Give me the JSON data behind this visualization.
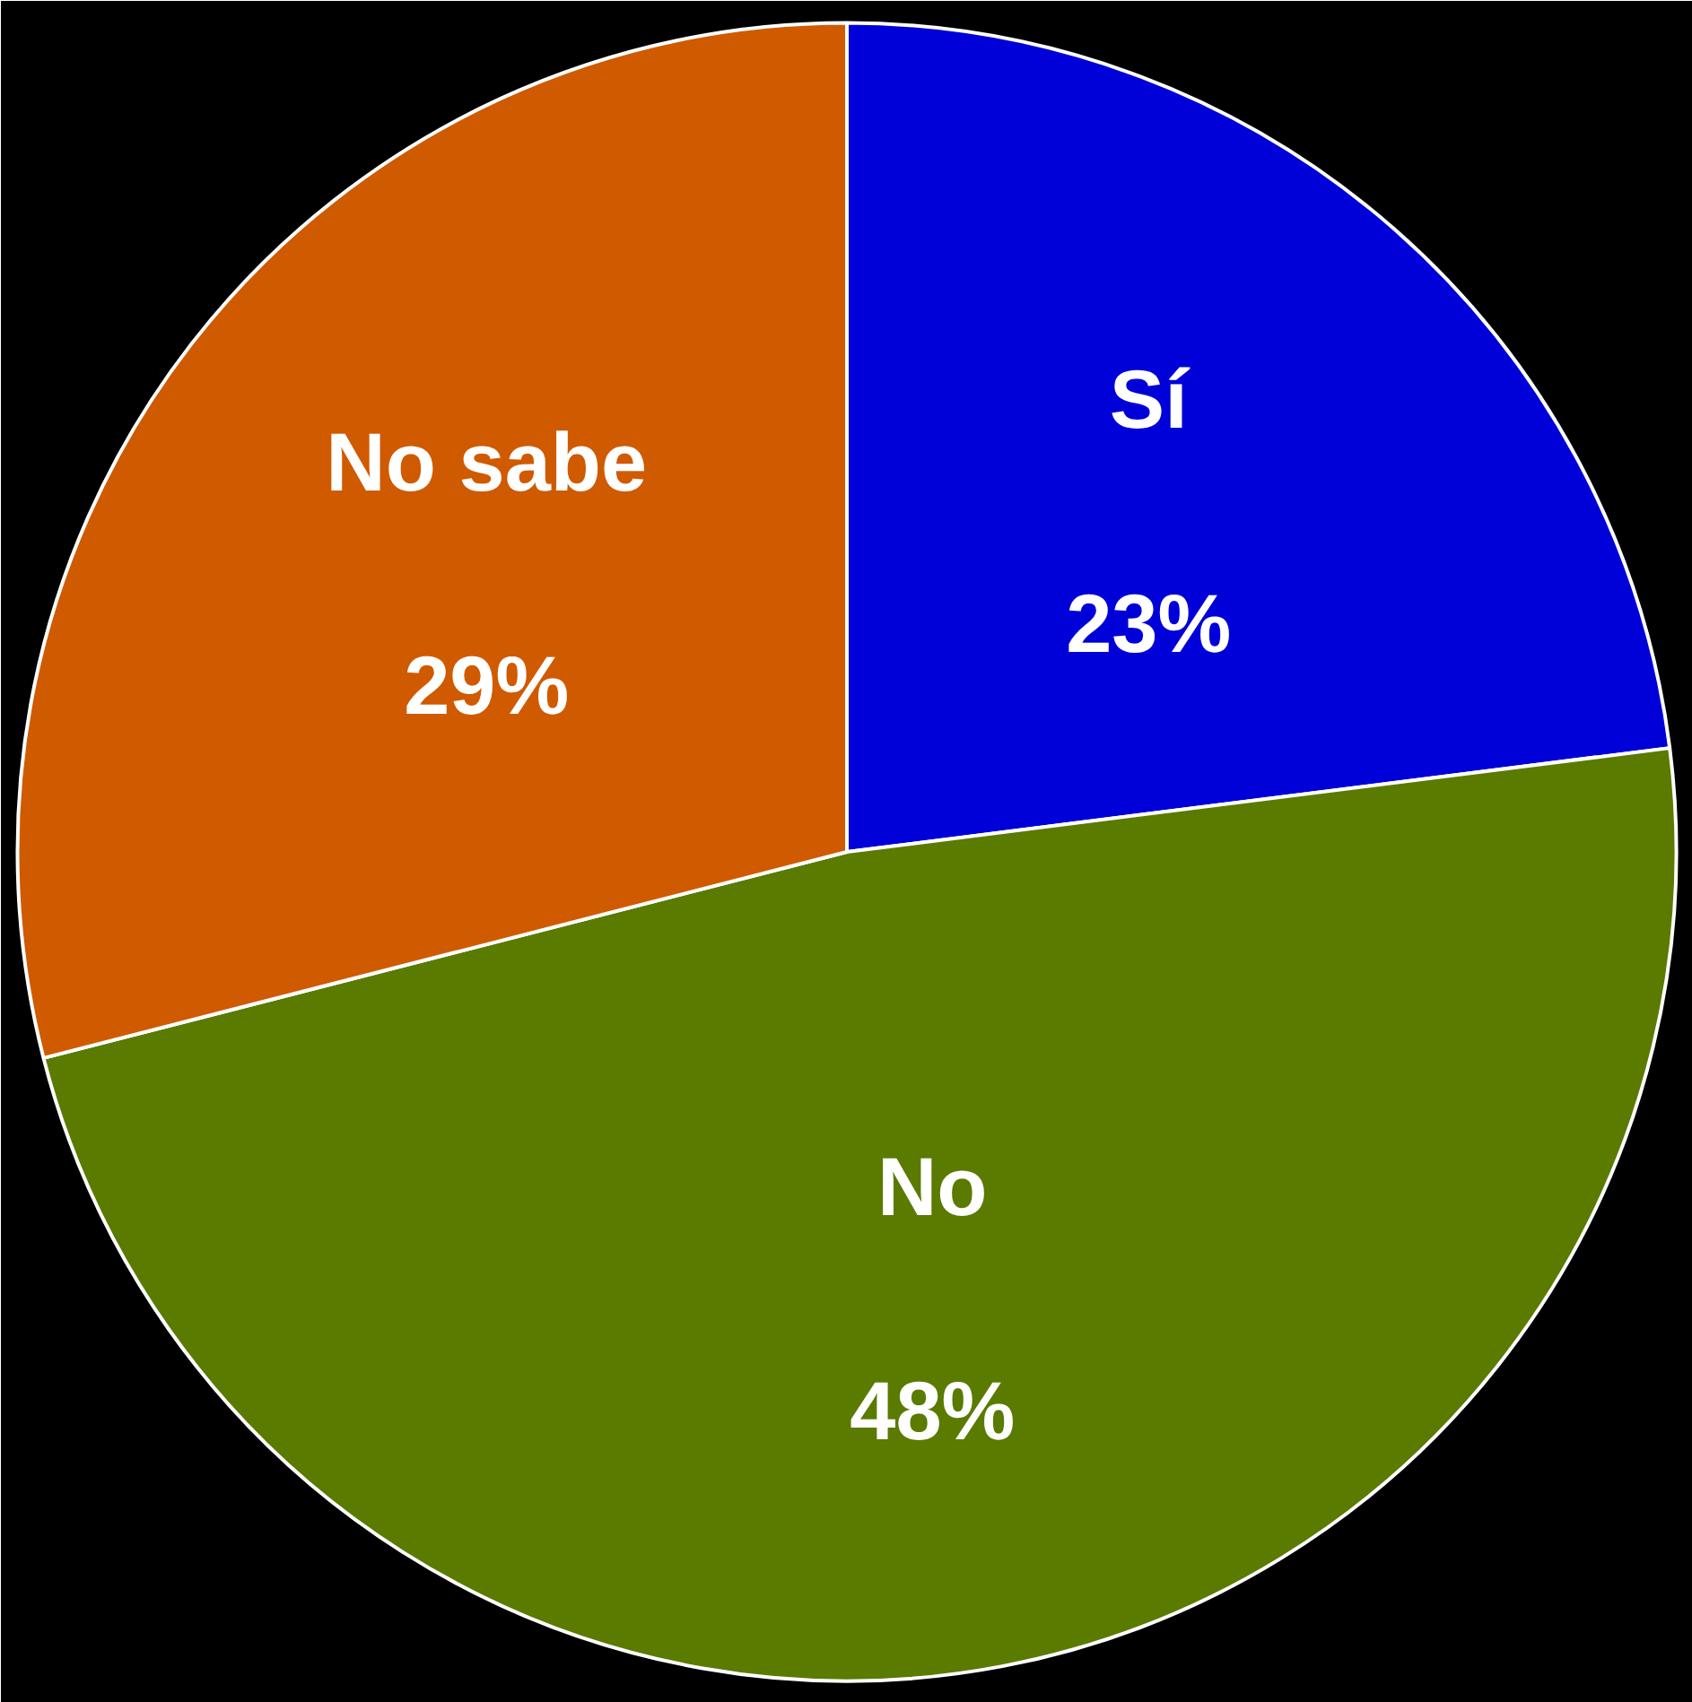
{
  "chart_data": {
    "type": "pie",
    "categories": [
      "Sí",
      "No",
      "No sabe"
    ],
    "values": [
      23,
      48,
      29
    ],
    "value_labels": [
      "23%",
      "48%",
      "29%"
    ],
    "colors": [
      "#0000d8",
      "#5a7a00",
      "#d05a00"
    ]
  }
}
